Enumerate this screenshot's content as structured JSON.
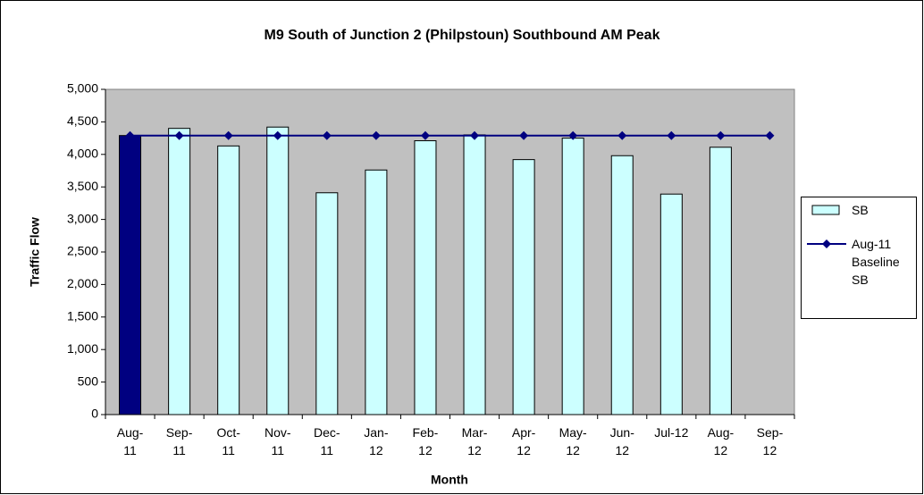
{
  "chart_data": {
    "type": "bar_line",
    "title": "M9 South of Junction 2 (Philpstoun) Southbound AM Peak",
    "xlabel": "Month",
    "ylabel": "Traffic Flow",
    "categories": [
      "Aug-11",
      "Sep-11",
      "Oct-11",
      "Nov-11",
      "Dec-11",
      "Jan-12",
      "Feb-12",
      "Mar-12",
      "Apr-12",
      "May-12",
      "Jun-12",
      "Jul-12",
      "Aug-12",
      "Sep-12"
    ],
    "series": [
      {
        "name": "SB",
        "type": "bar",
        "color": "#ccffff",
        "colors": [
          "#000080",
          "#ccffff",
          "#ccffff",
          "#ccffff",
          "#ccffff",
          "#ccffff",
          "#ccffff",
          "#ccffff",
          "#ccffff",
          "#ccffff",
          "#ccffff",
          "#ccffff",
          "#ccffff",
          "#ccffff"
        ],
        "values": [
          4290,
          4400,
          4130,
          4420,
          3410,
          3760,
          4210,
          4300,
          3920,
          4250,
          3980,
          3390,
          4110,
          null
        ]
      },
      {
        "name": "Aug-11 Baseline SB",
        "type": "line",
        "color": "#000080",
        "values": [
          4290,
          4290,
          4290,
          4290,
          4290,
          4290,
          4290,
          4290,
          4290,
          4290,
          4290,
          4290,
          4290,
          4290
        ]
      }
    ],
    "ylim": [
      0,
      5000
    ],
    "yticks": [
      0,
      500,
      {
        "value": 1000,
        "label": "1,000"
      },
      {
        "value": 1500,
        "label": "1,500"
      },
      {
        "value": 2000,
        "label": "2,000"
      },
      {
        "value": 2500,
        "label": "2,500"
      },
      {
        "value": 3000,
        "label": "3,000"
      },
      {
        "value": 3500,
        "label": "3,500"
      },
      {
        "value": 4000,
        "label": "4,000"
      },
      {
        "value": 4500,
        "label": "4,500"
      },
      {
        "value": 5000,
        "label": "5,000"
      }
    ],
    "plot_background": "#c0c0c0",
    "legend": "right"
  }
}
